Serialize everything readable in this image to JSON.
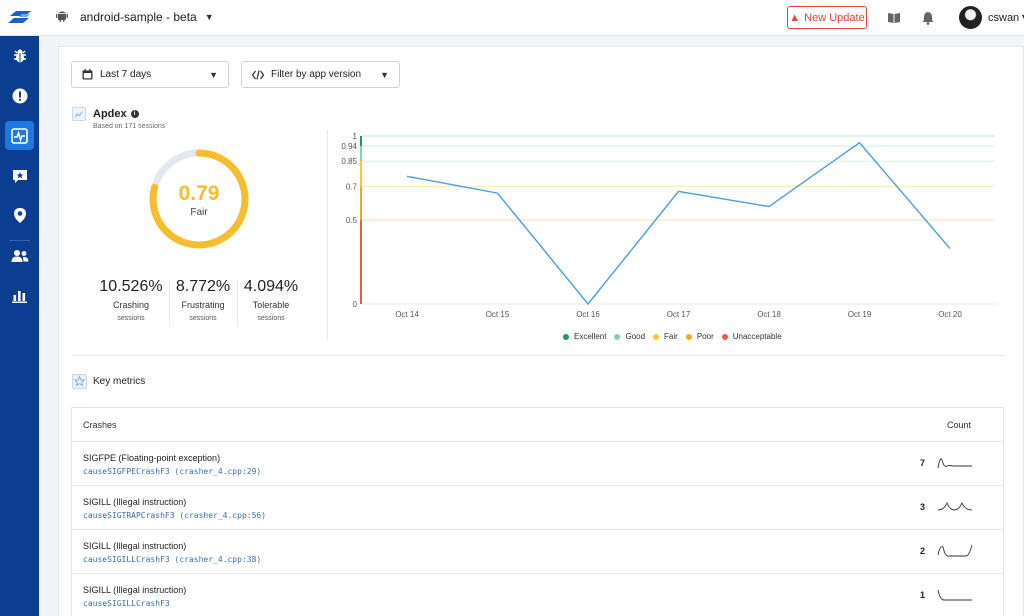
{
  "header": {
    "app_name": "android-sample - beta",
    "new_update_label": "New Update",
    "username": "cswan"
  },
  "sidebar": {
    "items": [
      {
        "icon": "bug-icon",
        "active": false
      },
      {
        "icon": "alert-icon",
        "active": false
      },
      {
        "icon": "performance-icon",
        "active": true
      },
      {
        "icon": "feedback-icon",
        "active": false
      },
      {
        "icon": "location-icon",
        "active": false
      },
      {
        "icon": "users-icon",
        "active": false
      },
      {
        "icon": "analytics-icon",
        "active": false
      }
    ]
  },
  "filters": {
    "date_range": "Last 7 days",
    "app_version": "Filter by app version"
  },
  "apdex": {
    "title": "Apdex",
    "subtitle": "Based on 171 sessions",
    "score": "0.79",
    "score_value": 0.79,
    "rating": "Fair",
    "stats": [
      {
        "pct": "10.526%",
        "label": "Crashing",
        "sub": "sessions"
      },
      {
        "pct": "8.772%",
        "label": "Frustrating",
        "sub": "sessions"
      },
      {
        "pct": "4.094%",
        "label": "Tolerable",
        "sub": "sessions"
      }
    ]
  },
  "chart_data": {
    "type": "line",
    "title": "Apdex",
    "categories": [
      "Oct 14",
      "Oct 15",
      "Oct 16",
      "Oct 17",
      "Oct 18",
      "Oct 19",
      "Oct 20"
    ],
    "values": [
      0.76,
      0.66,
      0.0,
      0.67,
      0.58,
      0.96,
      0.33
    ],
    "ylim": [
      0,
      1
    ],
    "yticks": [
      "0",
      "0.5",
      "0.7",
      "0.85",
      "0.94",
      "1"
    ],
    "thresholds": [
      {
        "from": 0.94,
        "to": 1.0,
        "color": "#19a056"
      },
      {
        "from": 0.85,
        "to": 0.94,
        "color": "#7dd6a9"
      },
      {
        "from": 0.7,
        "to": 0.85,
        "color": "#f6c92f"
      },
      {
        "from": 0.5,
        "to": 0.7,
        "color": "#f5a623"
      },
      {
        "from": 0.0,
        "to": 0.5,
        "color": "#e8584b"
      }
    ],
    "legend": [
      {
        "label": "Excellent",
        "color": "#19a056"
      },
      {
        "label": "Good",
        "color": "#7dd6a9"
      },
      {
        "label": "Fair",
        "color": "#f6c92f"
      },
      {
        "label": "Poor",
        "color": "#f5a623"
      },
      {
        "label": "Unacceptable",
        "color": "#e8584b"
      }
    ],
    "line_color": "#4a9fdb"
  },
  "key_metrics": {
    "title": "Key metrics",
    "col_crashes": "Crashes",
    "col_count": "Count",
    "rows": [
      {
        "name": "SIGFPE (Floating-point exception)",
        "location": "causeSIGFPECrashF3 (crasher_4.cpp:29)",
        "count": "7"
      },
      {
        "name": "SIGILL (Illegal instruction)",
        "location": "causeSIGTRAPCrashF3 (crasher_4.cpp:56)",
        "count": "3"
      },
      {
        "name": "SIGILL (Illegal instruction)",
        "location": "causeSIGILLCrashF3 (crasher_4.cpp:38)",
        "count": "2"
      },
      {
        "name": "SIGILL (Illegal instruction)",
        "location": "causeSIGILLCrashF3",
        "count": "1"
      }
    ]
  }
}
